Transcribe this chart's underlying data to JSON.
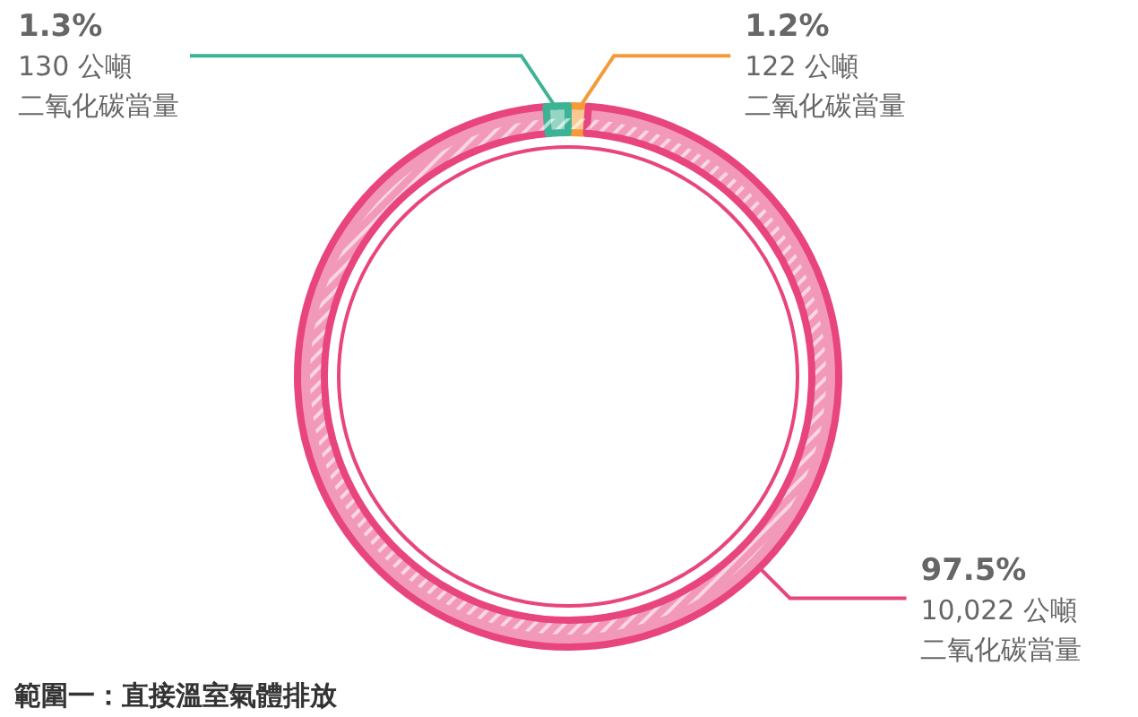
{
  "chart_data": {
    "type": "donut",
    "title": "範圍一：直接溫室氣體排放",
    "categories": [
      "122 公噸二氧化碳當量",
      "10,022 公噸二氧化碳當量",
      "130 公噸二氧化碳當量"
    ],
    "values": [
      1.2,
      97.5,
      1.3
    ],
    "value_labels": [
      "1.2%",
      "97.5%",
      "1.3%"
    ],
    "colors": [
      "#f49a3a",
      "#e8457f",
      "#3db395"
    ]
  }
}
